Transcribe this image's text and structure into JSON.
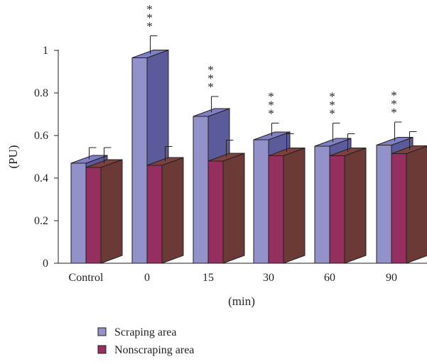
{
  "chart_data": {
    "type": "bar",
    "categories": [
      "Control",
      "0",
      "15",
      "30",
      "60",
      "90"
    ],
    "series": [
      {
        "name": "Scraping area",
        "values": [
          0.47,
          0.965,
          0.69,
          0.58,
          0.55,
          0.555
        ],
        "errors": [
          0.055,
          0.085,
          0.075,
          0.06,
          0.09,
          0.09
        ]
      },
      {
        "name": "Nonscraping area",
        "values": [
          0.45,
          0.46,
          0.48,
          0.505,
          0.505,
          0.515
        ],
        "errors": [
          0.075,
          0.07,
          0.08,
          0.085,
          0.085,
          0.085
        ]
      }
    ],
    "significance": [
      "",
      "***",
      "***",
      "***",
      "***",
      "***"
    ],
    "xlabel": "(min)",
    "ylabel": "(PU)",
    "yticks": [
      "0",
      "0.2",
      "0.4",
      "0.6",
      "0.8",
      "1"
    ],
    "ylim": [
      0,
      1
    ],
    "grid": false,
    "legend_position": "bottom-left",
    "style": "3d-bar",
    "colors": {
      "scraping_front": "#9391c9",
      "scraping_side": "#5b5a9a",
      "scraping_top": "#7f7fc4",
      "nonscraping_front": "#952f60",
      "nonscraping_side": "#6b3a37",
      "nonscraping_top": "#7d4140",
      "outline": "#231f20"
    }
  }
}
